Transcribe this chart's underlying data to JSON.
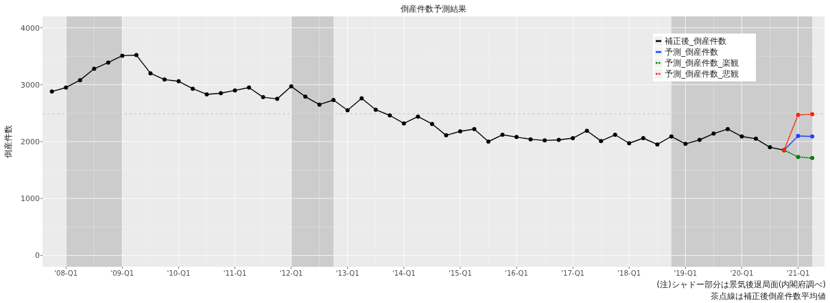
{
  "chart_data": {
    "type": "line",
    "title": "倒産件数予測結果",
    "ylabel": "倒産件数",
    "x": [
      "2007-10",
      "2008-01",
      "2008-04",
      "2008-07",
      "2008-10",
      "2009-01",
      "2009-04",
      "2009-07",
      "2009-10",
      "2010-01",
      "2010-04",
      "2010-07",
      "2010-10",
      "2011-01",
      "2011-04",
      "2011-07",
      "2011-10",
      "2012-01",
      "2012-04",
      "2012-07",
      "2012-10",
      "2013-01",
      "2013-04",
      "2013-07",
      "2013-10",
      "2014-01",
      "2014-04",
      "2014-07",
      "2014-10",
      "2015-01",
      "2015-04",
      "2015-07",
      "2015-10",
      "2016-01",
      "2016-04",
      "2016-07",
      "2016-10",
      "2017-01",
      "2017-04",
      "2017-07",
      "2017-10",
      "2018-01",
      "2018-04",
      "2018-07",
      "2018-10",
      "2019-01",
      "2019-04",
      "2019-07",
      "2019-10",
      "2020-01",
      "2020-04",
      "2020-07",
      "2020-10"
    ],
    "series": [
      {
        "name": "補正後_倒産件数",
        "color": "#000000",
        "values": [
          2880,
          2950,
          3080,
          3280,
          3390,
          3510,
          3520,
          3200,
          3090,
          3060,
          2930,
          2830,
          2850,
          2900,
          2950,
          2780,
          2750,
          2970,
          2790,
          2650,
          2730,
          2550,
          2760,
          2560,
          2460,
          2320,
          2440,
          2310,
          2110,
          2180,
          2220,
          2000,
          2120,
          2080,
          2040,
          2020,
          2030,
          2060,
          2190,
          2010,
          2120,
          1970,
          2060,
          1950,
          2090,
          1960,
          2030,
          2140,
          2220,
          2090,
          2050,
          1900,
          1850
        ]
      },
      {
        "name": "予測_倒産件数",
        "color": "#1f3fff",
        "x": [
          "2020-10",
          "2021-01",
          "2021-04"
        ],
        "values": [
          1850,
          2100,
          2090
        ]
      },
      {
        "name": "予測_倒産件数_楽観",
        "color": "#008000",
        "line_style": "dotted",
        "x": [
          "2020-10",
          "2021-01",
          "2021-04"
        ],
        "values": [
          1850,
          1730,
          1710
        ]
      },
      {
        "name": "予測_倒産件数_悲観",
        "color": "#ff2000",
        "line_style": "dotted",
        "x": [
          "2020-10",
          "2021-01",
          "2021-04"
        ],
        "values": [
          1850,
          2470,
          2480
        ]
      }
    ],
    "xlim": [
      "2007-08",
      "2021-06-20"
    ],
    "ylim": [
      -200,
      4200
    ],
    "yticks": [
      0,
      1000,
      2000,
      3000,
      4000
    ],
    "xticks": [
      {
        "value": "2008-01",
        "label": "'08-Q1"
      },
      {
        "value": "2009-01",
        "label": "'09-Q1"
      },
      {
        "value": "2010-01",
        "label": "'10-Q1"
      },
      {
        "value": "2011-01",
        "label": "'11-Q1"
      },
      {
        "value": "2012-01",
        "label": "'12-Q1"
      },
      {
        "value": "2013-01",
        "label": "'13-Q1"
      },
      {
        "value": "2014-01",
        "label": "'14-Q1"
      },
      {
        "value": "2015-01",
        "label": "'15-Q1"
      },
      {
        "value": "2016-01",
        "label": "'16-Q1"
      },
      {
        "value": "2017-01",
        "label": "'17-Q1"
      },
      {
        "value": "2018-01",
        "label": "'18-Q1"
      },
      {
        "value": "2019-01",
        "label": "'19-Q1"
      },
      {
        "value": "2020-01",
        "label": "'20-Q1"
      },
      {
        "value": "2021-01",
        "label": "'21-Q1"
      }
    ],
    "bands": [
      {
        "axis": "x",
        "from": "2008-01",
        "to": "2009-01",
        "color": "#cccccc"
      },
      {
        "axis": "x",
        "from": "2012-01",
        "to": "2012-10",
        "color": "#cccccc"
      },
      {
        "axis": "x",
        "from": "2018-10",
        "to": "2021-04",
        "color": "#cccccc"
      }
    ],
    "ref_lines": [
      {
        "axis": "y",
        "value": 2490,
        "color": "#e6b8b8",
        "line_style": "dashed"
      }
    ],
    "annotations": [
      "(注)シャドー部分は景気後退局面(内閣府調べ)",
      "茶点線は補正後倒産件数平均値"
    ],
    "grid": true,
    "legend": "top right",
    "marker": "circle",
    "line_style": "solid"
  }
}
